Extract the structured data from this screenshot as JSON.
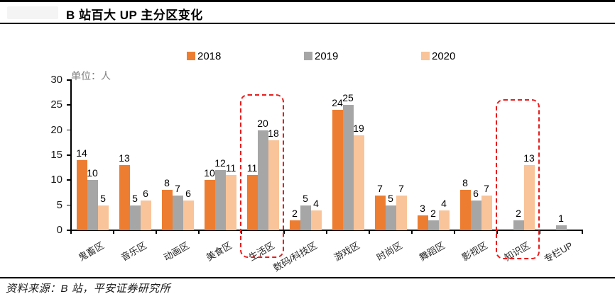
{
  "header": {
    "title": "B 站百大 UP 主分区变化"
  },
  "footer": {
    "source": "资料来源：B 站，平安证券研究所"
  },
  "chart_data": {
    "type": "bar",
    "title": "B 站百大 UP 主分区变化",
    "unit_label": "单位：人",
    "categories": [
      "鬼畜区",
      "音乐区",
      "动画区",
      "美食区",
      "生活区",
      "数码/科技区",
      "游戏区",
      "时尚区",
      "舞蹈区",
      "影视区",
      "知识区",
      "专栏UP"
    ],
    "series": [
      {
        "name": "2018",
        "color": "#ED7D31",
        "values": [
          14,
          13,
          8,
          10,
          11,
          2,
          24,
          7,
          3,
          8,
          null,
          null
        ]
      },
      {
        "name": "2019",
        "color": "#A6A6A6",
        "values": [
          10,
          5,
          7,
          12,
          20,
          5,
          25,
          5,
          2,
          6,
          2,
          1
        ]
      },
      {
        "name": "2020",
        "color": "#F9C499",
        "values": [
          5,
          6,
          6,
          11,
          18,
          4,
          19,
          7,
          4,
          7,
          13,
          null
        ]
      }
    ],
    "ylim": [
      0,
      30
    ],
    "yticks": [
      0,
      5,
      10,
      15,
      20,
      25,
      30
    ],
    "grid": "off",
    "legend_position": "top",
    "highlights": [
      "生活区",
      "知识区"
    ],
    "highlight_color": "#E81C1C"
  }
}
